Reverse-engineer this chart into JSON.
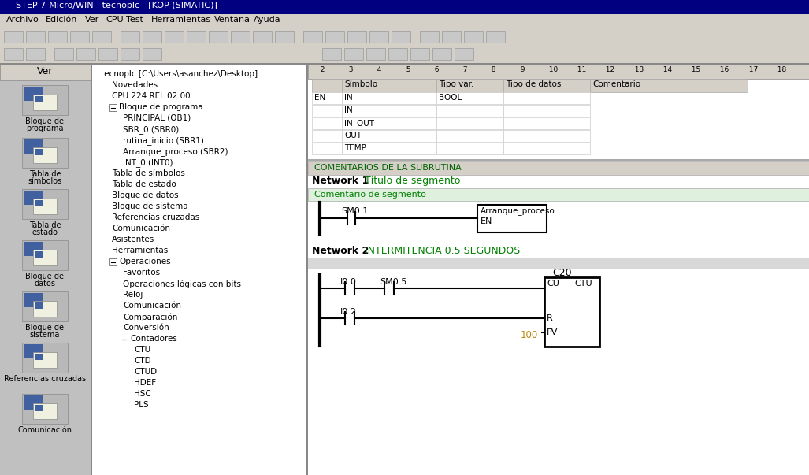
{
  "title_bar": "STEP 7-Micro/WIN - tecnoplc - [KOP (SIMATIC)]",
  "menu_items": [
    "Archivo",
    "Edición",
    "Ver",
    "CPU",
    "Test",
    "Herramientas",
    "Ventana",
    "Ayuda"
  ],
  "left_panel_title": "Ver",
  "left_panel_items": [
    "Bloque de programa",
    "Tabla de símbolos",
    "Tabla de estado",
    "Bloque de datos",
    "Bloque de sistema",
    "Referencias cruzadas",
    "Comunicación"
  ],
  "var_table_headers": [
    "",
    "Símbolo",
    "Tipo var.",
    "Tipo de datos",
    "Comentario"
  ],
  "var_table_rows": [
    [
      "EN",
      "IN",
      "BOOL",
      ""
    ],
    [
      "",
      "IN",
      "",
      ""
    ],
    [
      "",
      "IN_OUT",
      "",
      ""
    ],
    [
      "",
      "OUT",
      "",
      ""
    ],
    [
      "",
      "TEMP",
      "",
      ""
    ]
  ],
  "comment_section_text": "COMENTARIOS DE LA SUBRUTINA",
  "network1_label": "Network 1",
  "network1_title": "Título de segmento",
  "network1_comment": "Comentario de segmento",
  "network1_contact_label": "SM0.1",
  "network1_block_label": "Arranque_proceso",
  "network1_block_input": "EN",
  "network2_label": "Network 2",
  "network2_title": "INTERMITENCIA 0.5 SEGUNDOS",
  "network2_contact1": "I0.0",
  "network2_contact2": "SM0.5",
  "network2_block_label": "C20",
  "network2_block_cu": "CU",
  "network2_block_ctu": "CTU",
  "network2_contact3": "I0.2",
  "network2_block_r": "R",
  "network2_pv_value": "100",
  "network2_block_pv": "PV",
  "bg_color": "#d4d0c8",
  "title_bar_color": "#000080",
  "title_bar_text_color": "#ffffff",
  "tree_bg": "#ffffff",
  "network_title_color": "#008000",
  "pv_value_color": "#b8860b",
  "left_sidebar_bg": "#c0c0c0",
  "tree_items": [
    [
      0,
      "tecnoplc [C:\\Users\\asanchez\\Desktop]",
      false
    ],
    [
      1,
      "Novedades",
      false
    ],
    [
      1,
      "CPU 224 REL 02.00",
      false
    ],
    [
      1,
      "Bloque de programa",
      true
    ],
    [
      2,
      "PRINCIPAL (OB1)",
      false
    ],
    [
      2,
      "SBR_0 (SBR0)",
      false
    ],
    [
      2,
      "rutina_inicio (SBR1)",
      false
    ],
    [
      2,
      "Arranque_proceso (SBR2)",
      false
    ],
    [
      2,
      "INT_0 (INT0)",
      false
    ],
    [
      1,
      "Tabla de símbolos",
      false
    ],
    [
      1,
      "Tabla de estado",
      false
    ],
    [
      1,
      "Bloque de datos",
      false
    ],
    [
      1,
      "Bloque de sistema",
      false
    ],
    [
      1,
      "Referencias cruzadas",
      false
    ],
    [
      1,
      "Comunicación",
      false
    ],
    [
      1,
      "Asistentes",
      false
    ],
    [
      1,
      "Herramientas",
      false
    ],
    [
      1,
      "Operaciones",
      true
    ],
    [
      2,
      "Favoritos",
      false
    ],
    [
      2,
      "Operaciones lógicas con bits",
      false
    ],
    [
      2,
      "Reloj",
      false
    ],
    [
      2,
      "Comunicación",
      false
    ],
    [
      2,
      "Comparación",
      false
    ],
    [
      2,
      "Conversión",
      false
    ],
    [
      2,
      "Contadores",
      true
    ],
    [
      3,
      "CTU",
      false
    ],
    [
      3,
      "CTD",
      false
    ],
    [
      3,
      "CTUD",
      false
    ],
    [
      3,
      "HDEF",
      false
    ],
    [
      3,
      "HSC",
      false
    ],
    [
      3,
      "PLS",
      false
    ]
  ]
}
